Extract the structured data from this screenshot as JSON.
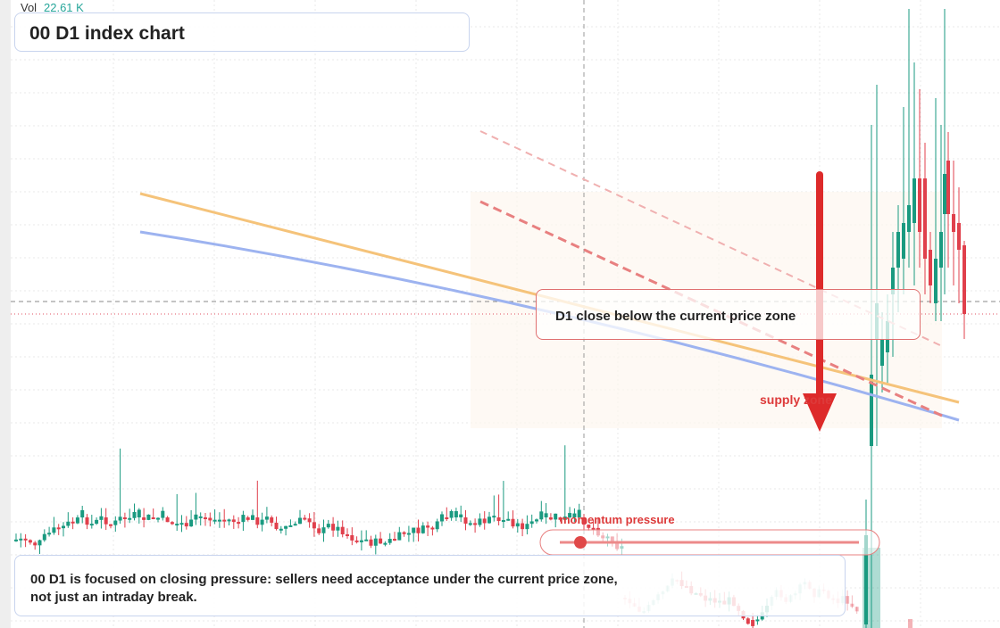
{
  "header": {
    "vol_label": "Vol",
    "vol_value": "22.61 K",
    "title": "00 D1 index chart"
  },
  "annotations": {
    "zone_note": "D1 close below the current price zone",
    "zone_label": "supply zone",
    "momentum_label": "momentum pressure"
  },
  "footer": {
    "lines": [
      "00 D1 is focused on closing pressure: sellers need acceptance under the current price zone,",
      "not just an intraday break."
    ]
  }
}
